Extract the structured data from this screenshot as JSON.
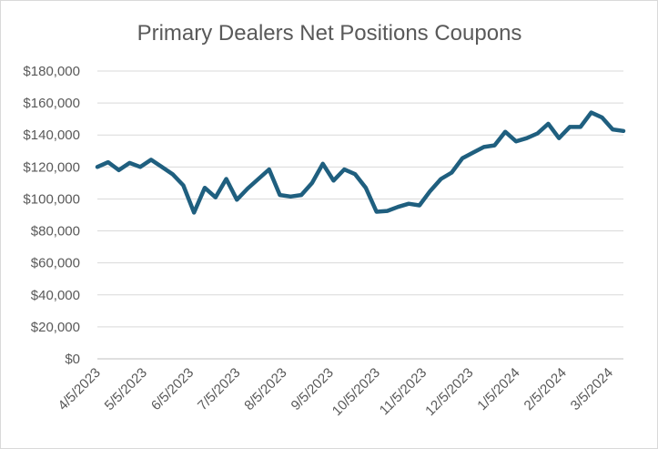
{
  "chart_data": {
    "type": "line",
    "title": "Primary Dealers Net Positions Coupons",
    "xlabel": "",
    "ylabel": "",
    "ylim": [
      0,
      180000
    ],
    "yticks": [
      0,
      20000,
      40000,
      60000,
      80000,
      100000,
      120000,
      140000,
      160000,
      180000
    ],
    "ytick_labels": [
      "$0",
      "$20,000",
      "$40,000",
      "$60,000",
      "$80,000",
      "$100,000",
      "$120,000",
      "$140,000",
      "$160,000",
      "$180,000"
    ],
    "xtick_labels": [
      "4/5/2023",
      "5/5/2023",
      "6/5/2023",
      "7/5/2023",
      "8/5/2023",
      "9/5/2023",
      "10/5/2023",
      "11/5/2023",
      "12/5/2023",
      "1/5/2024",
      "2/5/2024",
      "3/5/2024"
    ],
    "grid": true,
    "legend": "none",
    "line_color": "#1f5f7f",
    "series": [
      {
        "values": [
          120000,
          123000,
          118000,
          122500,
          120000,
          124500,
          120000,
          115500,
          108500,
          91500,
          107000,
          101000,
          112500,
          99500,
          106500,
          112500,
          118500,
          102500,
          101500,
          102500,
          110000,
          122000,
          111500,
          118500,
          115500,
          107000,
          92000,
          92500,
          95000,
          97000,
          96000,
          105000,
          112500,
          116500,
          125500,
          129000,
          132500,
          133500,
          142000,
          136000,
          138000,
          141000,
          147000,
          138000,
          145000,
          145000,
          154000,
          151000,
          143500,
          142500
        ]
      }
    ]
  }
}
